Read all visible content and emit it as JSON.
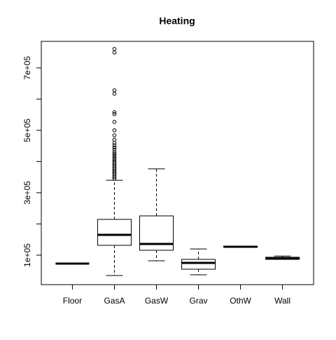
{
  "chart_data": {
    "type": "box",
    "title": "Heating",
    "categories": [
      "Floor",
      "GasA",
      "GasW",
      "Grav",
      "OthW",
      "Wall"
    ],
    "whisker_low": [
      73000,
      34800,
      82000,
      37100,
      125000,
      86500
    ],
    "q1": [
      73000,
      131500,
      115700,
      55000,
      125000,
      86500
    ],
    "median": [
      73000,
      165000,
      136000,
      75300,
      127000,
      91000
    ],
    "q3": [
      73000,
      214600,
      225800,
      86500,
      129000,
      93300
    ],
    "whisker_high": [
      73000,
      340000,
      376400,
      120000,
      129000,
      97000
    ],
    "outliers": [
      [],
      [
        760700,
        749400,
        628000,
        617000,
        558000,
        552000,
        527000,
        500000,
        484000,
        470000,
        460000,
        452000,
        445000,
        438000,
        430000,
        424000,
        418000,
        412000,
        406000,
        400000,
        395000,
        390000,
        385000,
        380000,
        375000,
        370000,
        365000,
        360000,
        355000,
        350000,
        345000
      ],
      [],
      [],
      [],
      []
    ],
    "color": "#000000",
    "ylim": [
      5600,
      785000
    ],
    "yticks": [
      {
        "value": 100000,
        "label": "1e+05"
      },
      {
        "value": 300000,
        "label": "3e+05"
      },
      {
        "value": 500000,
        "label": "5e+05"
      },
      {
        "value": 700000,
        "label": "7e+05"
      }
    ],
    "yminor_ticks": [
      200000,
      400000,
      600000
    ]
  }
}
